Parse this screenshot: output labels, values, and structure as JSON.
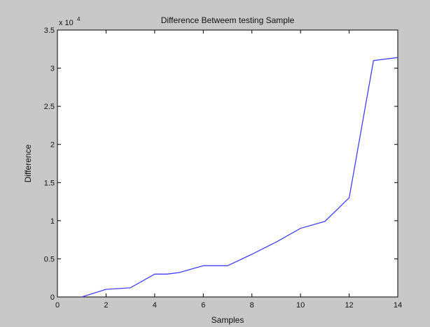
{
  "chart_data": {
    "type": "line",
    "title": "Difference Betweem testing Sample",
    "xlabel": "Samples",
    "ylabel": "Difference",
    "xlim": [
      0,
      14
    ],
    "ylim": [
      0,
      3.5
    ],
    "x_ticks": [
      "0",
      "2",
      "4",
      "6",
      "8",
      "10",
      "12",
      "14"
    ],
    "y_ticks": [
      "0",
      "0.5",
      "1",
      "1.5",
      "2",
      "2.5",
      "3",
      "3.5"
    ],
    "y_exponent_base": "x 10",
    "y_exponent_power": "4",
    "grid": false,
    "series": [
      {
        "color": "#4040ff",
        "x": [
          1,
          2,
          3,
          4,
          4.5,
          5,
          6,
          7,
          8,
          9,
          10,
          11,
          12,
          13,
          14
        ],
        "y": [
          0,
          0.1,
          0.12,
          0.3,
          0.3,
          0.32,
          0.41,
          0.41,
          0.56,
          0.72,
          0.9,
          0.99,
          1.3,
          3.1,
          3.14
        ]
      }
    ]
  }
}
